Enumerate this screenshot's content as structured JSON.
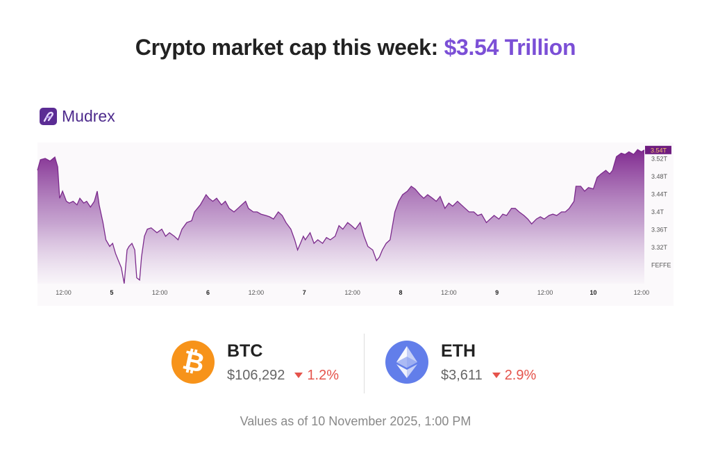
{
  "header": {
    "title_prefix": "Crypto market cap this week: ",
    "title_value": "$3.54 Trillion",
    "accent_color": "#7b4fd6"
  },
  "brand": {
    "name": "Mudrex",
    "color": "#5b2c94"
  },
  "chart_data": {
    "type": "area",
    "title": "",
    "xlabel": "",
    "ylabel": "",
    "x_unit": "day of month (axis ticks at days 5-10 and 12:00)",
    "x_ticks": [
      {
        "x": 4.5,
        "label": "12:00",
        "bold": false
      },
      {
        "x": 5,
        "label": "5",
        "bold": true
      },
      {
        "x": 5.5,
        "label": "12:00",
        "bold": false
      },
      {
        "x": 6,
        "label": "6",
        "bold": true
      },
      {
        "x": 6.5,
        "label": "12:00",
        "bold": false
      },
      {
        "x": 7,
        "label": "7",
        "bold": true
      },
      {
        "x": 7.5,
        "label": "12:00",
        "bold": false
      },
      {
        "x": 8,
        "label": "8",
        "bold": true
      },
      {
        "x": 8.5,
        "label": "12:00",
        "bold": false
      },
      {
        "x": 9,
        "label": "9",
        "bold": true
      },
      {
        "x": 9.5,
        "label": "12:00",
        "bold": false
      },
      {
        "x": 10,
        "label": "10",
        "bold": true
      },
      {
        "x": 10.5,
        "label": "12:00",
        "bold": false
      }
    ],
    "y_ticks": [
      {
        "y": 3.52,
        "label": "3.52T"
      },
      {
        "y": 3.48,
        "label": "3.48T"
      },
      {
        "y": 3.44,
        "label": "3.44T"
      },
      {
        "y": 3.4,
        "label": "3.4T"
      },
      {
        "y": 3.36,
        "label": "3.36T"
      },
      {
        "y": 3.32,
        "label": "3.32T"
      },
      {
        "y": 3.28,
        "label": "FEFFE"
      }
    ],
    "xlim": [
      4.23,
      10.53
    ],
    "ylim": [
      3.238,
      3.557
    ],
    "grid": false,
    "current_value": {
      "y": 3.54,
      "label": "3.54T"
    },
    "line_color": "#7b2a8c",
    "fill_color": "#7a1f8a",
    "x": [
      4.23,
      4.26,
      4.31,
      4.36,
      4.41,
      4.44,
      4.46,
      4.49,
      4.53,
      4.56,
      4.6,
      4.64,
      4.67,
      4.71,
      4.74,
      4.78,
      4.82,
      4.85,
      4.87,
      4.91,
      4.94,
      4.98,
      5.01,
      5.04,
      5.07,
      5.1,
      5.13,
      5.16,
      5.18,
      5.21,
      5.24,
      5.26,
      5.29,
      5.31,
      5.34,
      5.37,
      5.41,
      5.47,
      5.52,
      5.56,
      5.6,
      5.65,
      5.69,
      5.73,
      5.78,
      5.83,
      5.86,
      5.92,
      5.98,
      6.01,
      6.05,
      6.09,
      6.14,
      6.18,
      6.22,
      6.27,
      6.31,
      6.35,
      6.39,
      6.42,
      6.47,
      6.51,
      6.55,
      6.6,
      6.64,
      6.68,
      6.73,
      6.77,
      6.81,
      6.86,
      6.9,
      6.93,
      6.96,
      6.99,
      7.01,
      7.06,
      7.1,
      7.14,
      7.19,
      7.23,
      7.27,
      7.32,
      7.36,
      7.4,
      7.45,
      7.49,
      7.53,
      7.58,
      7.62,
      7.66,
      7.71,
      7.75,
      7.78,
      7.81,
      7.85,
      7.89,
      7.94,
      7.98,
      8.02,
      8.07,
      8.11,
      8.15,
      8.2,
      8.24,
      8.28,
      8.33,
      8.37,
      8.41,
      8.46,
      8.5,
      8.54,
      8.59,
      8.63,
      8.67,
      8.71,
      8.76,
      8.8,
      8.84,
      8.89,
      8.93,
      8.97,
      9.02,
      9.06,
      9.1,
      9.15,
      9.19,
      9.23,
      9.28,
      9.32,
      9.36,
      9.41,
      9.45,
      9.49,
      9.54,
      9.58,
      9.62,
      9.67,
      9.71,
      9.75,
      9.8,
      9.82,
      9.87,
      9.91,
      9.95,
      10.0,
      10.04,
      10.08,
      10.13,
      10.17,
      10.2,
      10.24,
      10.29,
      10.33,
      10.37,
      10.42,
      10.46,
      10.5,
      10.53
    ],
    "values": [
      3.494,
      3.518,
      3.521,
      3.515,
      3.524,
      3.502,
      3.431,
      3.447,
      3.424,
      3.42,
      3.424,
      3.416,
      3.431,
      3.42,
      3.424,
      3.411,
      3.424,
      3.447,
      3.416,
      3.376,
      3.337,
      3.322,
      3.329,
      3.306,
      3.29,
      3.274,
      3.238,
      3.314,
      3.322,
      3.329,
      3.314,
      3.251,
      3.246,
      3.298,
      3.345,
      3.361,
      3.364,
      3.353,
      3.361,
      3.345,
      3.353,
      3.345,
      3.337,
      3.361,
      3.376,
      3.38,
      3.4,
      3.416,
      3.439,
      3.431,
      3.424,
      3.431,
      3.416,
      3.424,
      3.408,
      3.4,
      3.408,
      3.416,
      3.424,
      3.408,
      3.4,
      3.4,
      3.395,
      3.392,
      3.389,
      3.384,
      3.4,
      3.392,
      3.376,
      3.361,
      3.337,
      3.314,
      3.329,
      3.345,
      3.337,
      3.353,
      3.329,
      3.337,
      3.329,
      3.342,
      3.337,
      3.345,
      3.369,
      3.361,
      3.376,
      3.369,
      3.361,
      3.376,
      3.345,
      3.322,
      3.314,
      3.29,
      3.298,
      3.314,
      3.329,
      3.337,
      3.4,
      3.424,
      3.439,
      3.447,
      3.458,
      3.452,
      3.439,
      3.431,
      3.439,
      3.431,
      3.424,
      3.435,
      3.408,
      3.42,
      3.413,
      3.424,
      3.416,
      3.408,
      3.4,
      3.4,
      3.392,
      3.395,
      3.376,
      3.384,
      3.392,
      3.384,
      3.395,
      3.392,
      3.408,
      3.408,
      3.4,
      3.392,
      3.384,
      3.373,
      3.384,
      3.389,
      3.384,
      3.392,
      3.395,
      3.392,
      3.4,
      3.4,
      3.408,
      3.424,
      3.458,
      3.458,
      3.447,
      3.455,
      3.452,
      3.478,
      3.486,
      3.494,
      3.486,
      3.494,
      3.525,
      3.533,
      3.53,
      3.536,
      3.53,
      3.541,
      3.536,
      3.54
    ]
  },
  "coins": [
    {
      "symbol": "BTC",
      "price": "$106,292",
      "change": "1.2%",
      "direction": "down",
      "icon": "bitcoin-icon",
      "color": "#f7931a"
    },
    {
      "symbol": "ETH",
      "price": "$3,611",
      "change": "2.9%",
      "direction": "down",
      "icon": "ethereum-icon",
      "color": "#627eea"
    }
  ],
  "footer": {
    "text": "Values as of 10 November 2025, 1:00 PM"
  }
}
